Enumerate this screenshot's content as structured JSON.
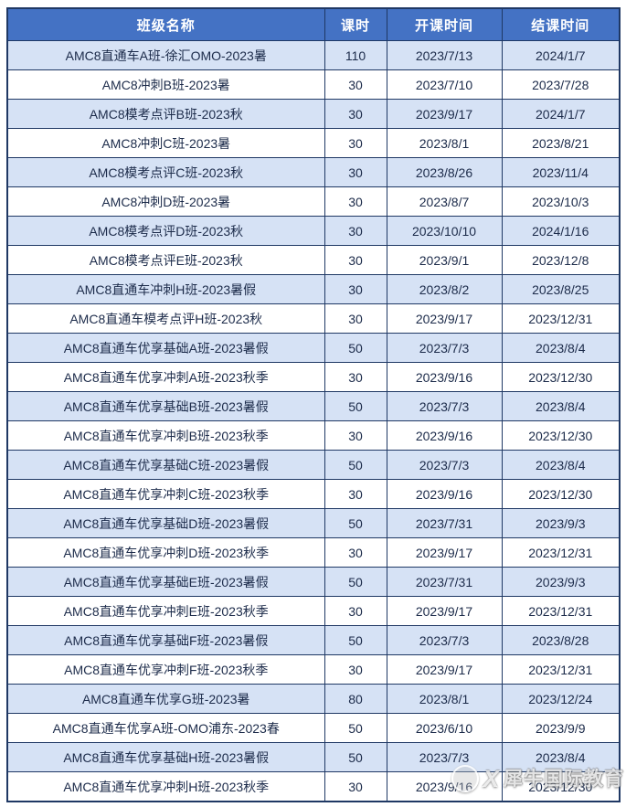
{
  "colors": {
    "header_bg": "#4472C4",
    "header_text": "#FFFFFF",
    "border": "#1F3864",
    "row_alt_bg": "#D6E2F5",
    "row_bg": "#FFFFFF",
    "cell_text": "#1C2B4A"
  },
  "table": {
    "headers": [
      "班级名称",
      "课时",
      "开课时间",
      "结课时间"
    ],
    "rows": [
      [
        "AMC8直通车A班-徐汇OMO-2023暑",
        "110",
        "2023/7/13",
        "2024/1/7"
      ],
      [
        "AMC8冲刺B班-2023暑",
        "30",
        "2023/7/10",
        "2023/7/28"
      ],
      [
        "AMC8模考点评B班-2023秋",
        "30",
        "2023/9/17",
        "2024/1/7"
      ],
      [
        "AMC8冲刺C班-2023暑",
        "30",
        "2023/8/1",
        "2023/8/21"
      ],
      [
        "AMC8模考点评C班-2023秋",
        "30",
        "2023/8/26",
        "2023/11/4"
      ],
      [
        "AMC8冲刺D班-2023暑",
        "30",
        "2023/8/7",
        "2023/10/3"
      ],
      [
        "AMC8模考点评D班-2023秋",
        "30",
        "2023/10/10",
        "2024/1/16"
      ],
      [
        "AMC8模考点评E班-2023秋",
        "30",
        "2023/9/1",
        "2023/12/8"
      ],
      [
        "AMC8直通车冲刺H班-2023暑假",
        "30",
        "2023/8/2",
        "2023/8/25"
      ],
      [
        "AMC8直通车模考点评H班-2023秋",
        "30",
        "2023/9/17",
        "2023/12/31"
      ],
      [
        "AMC8直通车优享基础A班-2023暑假",
        "50",
        "2023/7/3",
        "2023/8/4"
      ],
      [
        "AMC8直通车优享冲刺A班-2023秋季",
        "30",
        "2023/9/16",
        "2023/12/30"
      ],
      [
        "AMC8直通车优享基础B班-2023暑假",
        "50",
        "2023/7/3",
        "2023/8/4"
      ],
      [
        "AMC8直通车优享冲刺B班-2023秋季",
        "30",
        "2023/9/16",
        "2023/12/30"
      ],
      [
        "AMC8直通车优享基础C班-2023暑假",
        "50",
        "2023/7/3",
        "2023/8/4"
      ],
      [
        "AMC8直通车优享冲刺C班-2023秋季",
        "30",
        "2023/9/16",
        "2023/12/30"
      ],
      [
        "AMC8直通车优享基础D班-2023暑假",
        "50",
        "2023/7/31",
        "2023/9/3"
      ],
      [
        "AMC8直通车优享冲刺D班-2023秋季",
        "30",
        "2023/9/17",
        "2023/12/31"
      ],
      [
        "AMC8直通车优享基础E班-2023暑假",
        "50",
        "2023/7/31",
        "2023/9/3"
      ],
      [
        "AMC8直通车优享冲刺E班-2023秋季",
        "30",
        "2023/9/17",
        "2023/12/31"
      ],
      [
        "AMC8直通车优享基础F班-2023暑假",
        "50",
        "2023/7/3",
        "2023/8/28"
      ],
      [
        "AMC8直通车优享冲刺F班-2023秋季",
        "30",
        "2023/9/17",
        "2023/12/31"
      ],
      [
        "AMC8直通车优享G班-2023暑",
        "80",
        "2023/8/1",
        "2023/12/24"
      ],
      [
        "AMC8直通车优享A班-OMO浦东-2023春",
        "50",
        "2023/6/10",
        "2023/9/9"
      ],
      [
        "AMC8直通车优享基础H班-2023暑假",
        "50",
        "2023/7/3",
        "2023/8/4"
      ],
      [
        "AMC8直通车优享冲刺H班-2023秋季",
        "30",
        "2023/9/16",
        "2023/12/30"
      ]
    ]
  },
  "watermark": {
    "logo_icon": "rhino-logo",
    "mark": "X",
    "text": "犀牛国际教育"
  }
}
